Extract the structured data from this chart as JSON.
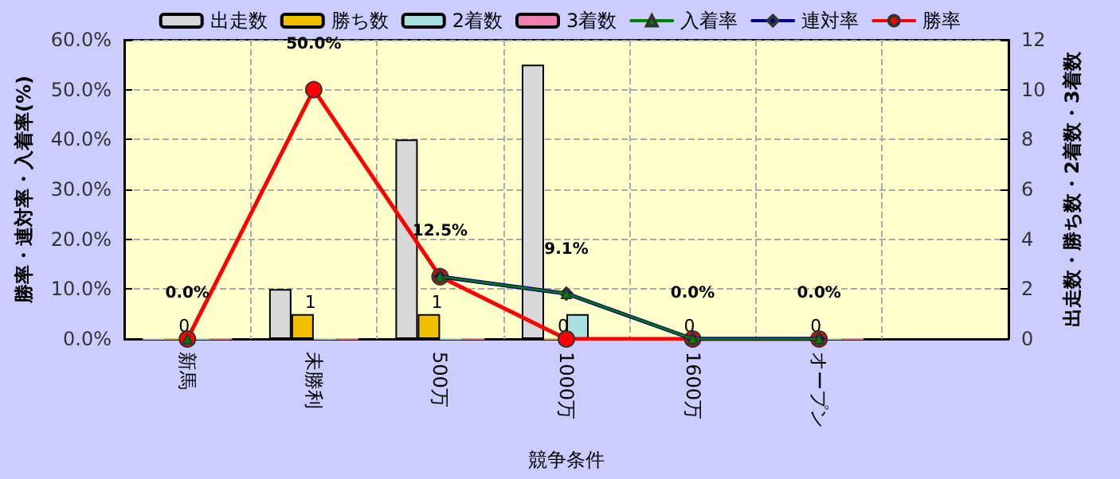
{
  "chart_data": {
    "type": "bar",
    "xlabel": "競争条件",
    "ylabel": "勝率・連対率・入着率(%)",
    "y2label": "出走数・勝ち数・2着数・3着数",
    "categories": [
      "新馬",
      "未勝利",
      "500万",
      "1000万",
      "1600万",
      "オープン",
      null
    ],
    "series": [
      {
        "name": "出走数",
        "axis": "y2",
        "color": "#d8d8d8",
        "values": [
          0,
          2,
          8,
          11,
          0,
          0,
          null
        ]
      },
      {
        "name": "勝ち数",
        "axis": "y2",
        "color": "#f0c000",
        "values": [
          0,
          1,
          1,
          0,
          0,
          0,
          null
        ],
        "value_labels": [
          "0",
          "1",
          "1",
          "0",
          "0",
          "0",
          null
        ]
      },
      {
        "name": "2着数",
        "axis": "y2",
        "color": "#a8e0e0",
        "values": [
          0,
          0,
          0,
          1,
          0,
          0,
          null
        ]
      },
      {
        "name": "3着数",
        "axis": "y2",
        "color": "#f080b0",
        "values": [
          0,
          0,
          0,
          0,
          0,
          0,
          null
        ]
      },
      {
        "name": "入着率",
        "type": "line",
        "marker": "triangle",
        "color": "#008000",
        "values": [
          0,
          null,
          12.5,
          9.1,
          0,
          0,
          null
        ]
      },
      {
        "name": "連対率",
        "type": "line",
        "marker": "diamond",
        "color": "#000080",
        "values": [
          null,
          null,
          12.5,
          9.1,
          0,
          0,
          null
        ],
        "value_labels": [
          null,
          null,
          null,
          "9.1%",
          null,
          null,
          null
        ]
      },
      {
        "name": "勝率",
        "type": "line",
        "marker": "circle",
        "color": "#ff0000",
        "values": [
          0,
          50,
          12.5,
          0,
          0,
          0,
          null
        ],
        "value_labels": [
          "0.0%",
          "50.0%",
          "12.5%",
          null,
          "0.0%",
          "0.0%",
          null
        ]
      }
    ],
    "ylim": [
      0,
      60
    ],
    "yticks": [
      {
        "value": 0,
        "label": "0.0%"
      },
      {
        "value": 10,
        "label": "10.0%"
      },
      {
        "value": 20,
        "label": "20.0%"
      },
      {
        "value": 30,
        "label": "30.0%"
      },
      {
        "value": 40,
        "label": "40.0%"
      },
      {
        "value": 50,
        "label": "50.0%"
      },
      {
        "value": 60,
        "label": "60.0%"
      }
    ],
    "y2lim": [
      0,
      12
    ],
    "y2ticks": [
      0,
      2,
      4,
      6,
      8,
      10,
      12
    ],
    "grid": true,
    "legend": "top"
  }
}
